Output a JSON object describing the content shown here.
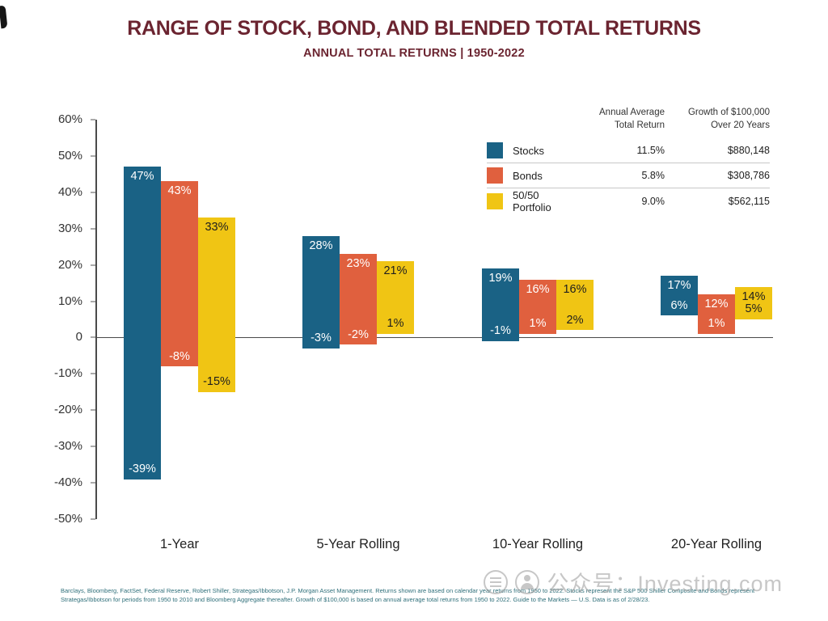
{
  "title": "RANGE OF STOCK, BOND, AND BLENDED TOTAL RETURNS",
  "subtitle": "ANNUAL TOTAL RETURNS | 1950-2022",
  "legend": {
    "return_header": "Annual Average\nTotal Return",
    "growth_header": "Growth of $100,000\nOver 20 Years",
    "rows": [
      {
        "label": "Stocks",
        "avg_return": "11.5%",
        "growth": "$880,148",
        "color": "#1A6285"
      },
      {
        "label": "Bonds",
        "avg_return": "5.8%",
        "growth": "$308,786",
        "color": "#E0603E"
      },
      {
        "label": "50/50 Portfolio",
        "avg_return": "9.0%",
        "growth": "$562,115",
        "color": "#F0C514"
      }
    ]
  },
  "chart_data": {
    "type": "bar",
    "subtype": "floating-range-columns",
    "title": "RANGE OF STOCK, BOND, AND BLENDED TOTAL RETURNS",
    "subtitle": "ANNUAL TOTAL RETURNS | 1950-2022",
    "categories": [
      "1-Year",
      "5-Year Rolling",
      "10-Year Rolling",
      "20-Year Rolling"
    ],
    "series": [
      {
        "name": "Stocks",
        "color": "#1A6285",
        "label_color": "#FFFFFF",
        "max": [
          47,
          28,
          19,
          17
        ],
        "min": [
          -39,
          -3,
          -1,
          6
        ]
      },
      {
        "name": "Bonds",
        "color": "#E0603E",
        "label_color": "#FFFFFF",
        "max": [
          43,
          23,
          16,
          12
        ],
        "min": [
          -8,
          -2,
          1,
          1
        ]
      },
      {
        "name": "50/50 Portfolio",
        "color": "#F0C514",
        "label_color": "#1E1E1E",
        "max": [
          33,
          21,
          16,
          14
        ],
        "min": [
          -15,
          1,
          2,
          5
        ]
      }
    ],
    "ylim": [
      -50,
      60
    ],
    "ytick_step": 10,
    "yaxis_format": "percent",
    "zero_label": "0",
    "grid": false,
    "legend_position": "top-right"
  },
  "footnote": "Barclays, Bloomberg, FactSet, Federal Reserve, Robert Shiller, Strategas/Ibbotson, J.P. Morgan Asset Management. Returns shown are based on calendar year returns from 1950 to 2022. Stocks represent the S&P 500 Shiller Composite and Bonds represent Strategas/Ibbotson for periods from 1950 to 2010 and Bloomberg Aggregate thereafter. Growth of $100,000 is based on annual average total returns from 1950 to 2022. Guide to the Markets — U.S. Data is as of 2/28/23.",
  "watermark": {
    "text": "公众号：Investing.com"
  }
}
